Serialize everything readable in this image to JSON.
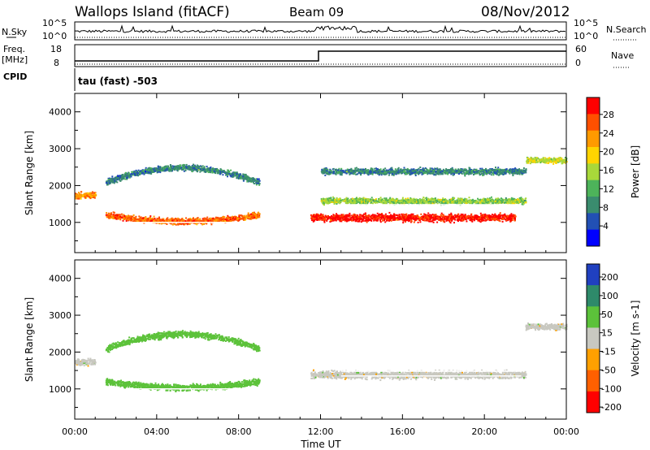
{
  "header": {
    "station": "Wallops Island (fitACF)",
    "beam": "Beam 09",
    "date": "08/Nov/2012"
  },
  "noise_panel": {
    "left_label": "N.Sky",
    "right_label": "N.Search",
    "left_ticks": [
      "10^5",
      "10^0"
    ],
    "right_ticks": [
      "10^5",
      "10^0"
    ]
  },
  "freq_panel": {
    "left_label_1": "Freq.",
    "left_label_2": "[MHz]",
    "left_ticks": [
      "18",
      "8"
    ],
    "right_label": "Nave",
    "right_ticks": [
      "60",
      "0"
    ]
  },
  "cpid": {
    "label": "CPID",
    "value": "tau (fast) -503"
  },
  "xaxis": {
    "label": "Time UT",
    "ticks": [
      "00:00",
      "04:00",
      "08:00",
      "12:00",
      "16:00",
      "20:00",
      "00:00"
    ]
  },
  "colors": {
    "power": [
      "#0000ff",
      "#2250b4",
      "#3a8c6e",
      "#4db35a",
      "#a8d83a",
      "#ffd400",
      "#ff9a00",
      "#ff5000",
      "#ff0000"
    ],
    "velocity": [
      "#2040c0",
      "#2e8a6a",
      "#5cc23a",
      "#c8c8c0",
      "#ffa000",
      "#ff6000",
      "#ff0000"
    ]
  },
  "chart_data": [
    {
      "type": "heatmap",
      "title": "Power",
      "ylabel": "Slant Range [km]",
      "xlabel": "Time UT",
      "xlim": [
        0,
        24
      ],
      "ylim": [
        180,
        4500
      ],
      "yticks": [
        "1000",
        "2000",
        "3000",
        "4000"
      ],
      "colorbar": {
        "label": "Power [dB]",
        "ticks": [
          "28",
          "24",
          "20",
          "16",
          "12",
          "8",
          "4"
        ],
        "range": [
          0,
          30
        ]
      },
      "features": [
        {
          "t_start": 0.0,
          "t_end": 1.0,
          "range_km": 1750,
          "value_db": 22
        },
        {
          "t_start": 1.5,
          "t_end": 9.0,
          "range_km": 1050,
          "value_db": 24
        },
        {
          "t_start": 1.5,
          "t_end": 9.0,
          "range_km": 2500,
          "value_db": 8
        },
        {
          "t_start": 11.5,
          "t_end": 21.5,
          "range_km": 1150,
          "value_db": 28
        },
        {
          "t_start": 12.0,
          "t_end": 22.0,
          "range_km": 1600,
          "value_db": 14
        },
        {
          "t_start": 12.0,
          "t_end": 22.0,
          "range_km": 2400,
          "value_db": 8
        },
        {
          "t_start": 22.0,
          "t_end": 24.0,
          "range_km": 2700,
          "value_db": 16
        }
      ]
    },
    {
      "type": "heatmap",
      "title": "Velocity",
      "ylabel": "Slant Range [km]",
      "xlabel": "Time UT",
      "xlim": [
        0,
        24
      ],
      "ylim": [
        180,
        4500
      ],
      "yticks": [
        "1000",
        "2000",
        "3000",
        "4000"
      ],
      "colorbar": {
        "label": "Velocity [m s-1]",
        "ticks": [
          "200",
          "100",
          "50",
          "15",
          "-15",
          "-50",
          "-100",
          "-200"
        ],
        "range": [
          -250,
          250
        ]
      },
      "features": [
        {
          "t_start": 0.0,
          "t_end": 1.0,
          "range_km": 1750,
          "value_ms": 0
        },
        {
          "t_start": 1.5,
          "t_end": 9.0,
          "range_km": 1050,
          "value_ms": 40
        },
        {
          "t_start": 1.5,
          "t_end": 9.0,
          "range_km": 2500,
          "value_ms": 40
        },
        {
          "t_start": 11.5,
          "t_end": 22.0,
          "range_km": 1400,
          "value_ms": 0
        },
        {
          "t_start": 22.0,
          "t_end": 24.0,
          "range_km": 2700,
          "value_ms": 0
        }
      ]
    }
  ]
}
